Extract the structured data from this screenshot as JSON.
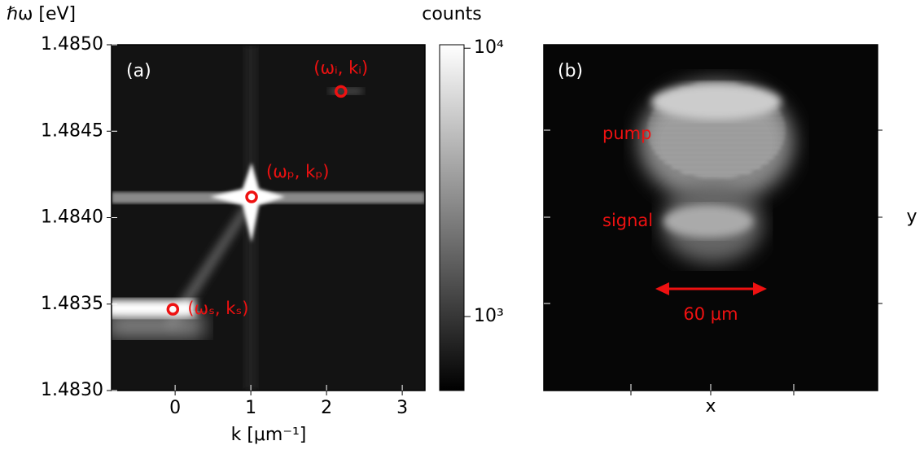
{
  "chart_data": [
    {
      "type": "heatmap",
      "panel_label": "(a)",
      "xlabel": "k [μm⁻¹]",
      "ylabel": "ℏω [eV]",
      "xlim": [
        -0.84,
        3.3
      ],
      "ylim": [
        1.483,
        1.485
      ],
      "xticks": [
        0,
        1,
        2,
        3
      ],
      "yticks": [
        {
          "value": 1.483,
          "label": "1.4830"
        },
        1.4835,
        {
          "value": 1.484,
          "label": "1.4840"
        },
        1.4845,
        {
          "value": 1.485,
          "label": "1.4850"
        }
      ],
      "markers": {
        "color": "#ee1111",
        "labels": [
          "(ωₛ, kₛ)",
          "(ωₚ, kₚ)",
          "(ωᵢ, kᵢ)"
        ],
        "x": [
          -0.03,
          1.01,
          2.19
        ],
        "y": [
          1.48347,
          1.48412,
          1.48473
        ]
      },
      "colorbar": {
        "label": "counts",
        "log_scale": true,
        "clim": [
          530,
          10300
        ],
        "ticks": [
          {
            "value": 1000,
            "label": "10³"
          },
          {
            "value": 10000,
            "label": "10⁴"
          }
        ]
      }
    },
    {
      "type": "image",
      "panel_label": "(b)",
      "xlabel": "x",
      "ylabel": "y",
      "annotations": [
        "pump",
        "signal"
      ],
      "scale_bar": "60 μm"
    }
  ]
}
